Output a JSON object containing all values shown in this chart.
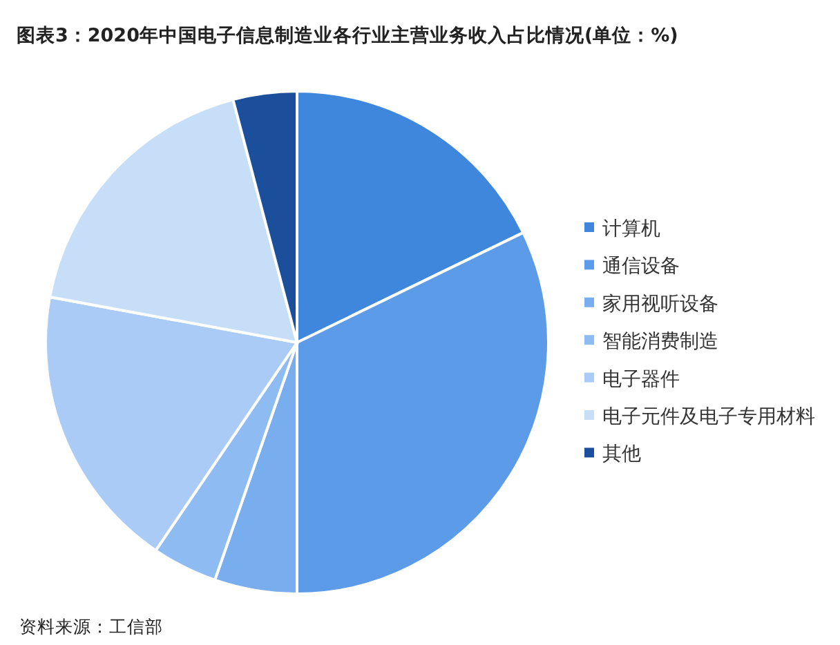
{
  "chart_data": {
    "type": "pie",
    "title": "图表3：2020年中国电子信息制造业各行业主营业务收入占比情况(单位：%)",
    "categories": [
      "计算机",
      "通信设备",
      "家用视听设备",
      "智能消费制造",
      "电子器件",
      "电子元件及电子专用材料",
      "其他"
    ],
    "values": [
      17.8,
      32.2,
      5.3,
      4.2,
      18.4,
      18.0,
      4.1
    ],
    "colors": [
      "#3f86dd",
      "#5b9be8",
      "#78adee",
      "#8ebcf2",
      "#a9cbf5",
      "#c7def9",
      "#1b4f9b"
    ],
    "legend": "right",
    "annotations": [
      "资料来源：工信部"
    ]
  }
}
